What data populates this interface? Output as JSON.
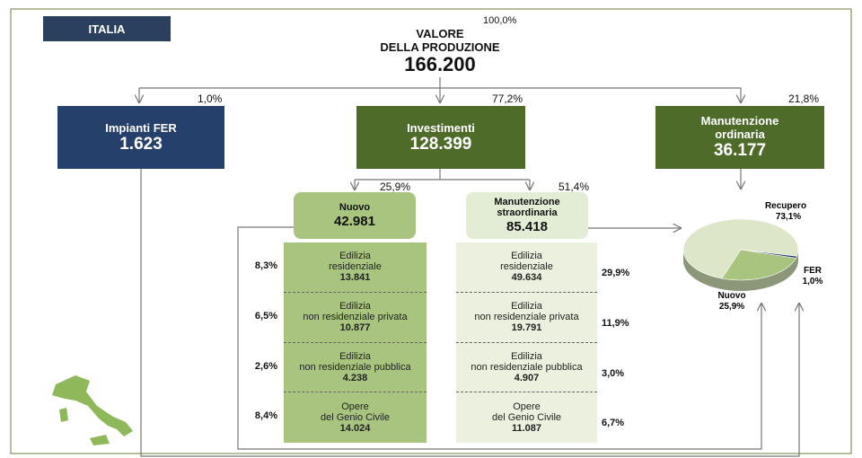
{
  "badge": "ITALIA",
  "root": {
    "title_lines": [
      "VALORE",
      "DELLA PRODUZIONE"
    ],
    "value": "166.200",
    "share": "100,0%"
  },
  "branches": [
    {
      "label_lines": [
        "Impianti FER"
      ],
      "value": "1.623",
      "share": "1,0%"
    },
    {
      "label_lines": [
        "Investimenti"
      ],
      "value": "128.399",
      "share": "77,2%"
    },
    {
      "label_lines": [
        "Manutenzione",
        "ordinaria"
      ],
      "value": "36.177",
      "share": "21,8%"
    }
  ],
  "investments": [
    {
      "label_lines": [
        "Nuovo"
      ],
      "value": "42.981",
      "share": "25,9%",
      "rows": [
        {
          "label_lines": [
            "Edilizia",
            "residenziale"
          ],
          "value": "13.841",
          "share": "8,3%"
        },
        {
          "label_lines": [
            "Edilizia",
            "non residenziale privata"
          ],
          "value": "10.877",
          "share": "6,5%"
        },
        {
          "label_lines": [
            "Edilizia",
            "non residenziale pubblica"
          ],
          "value": "4.238",
          "share": "2,6%"
        },
        {
          "label_lines": [
            "Opere",
            "del Genio Civile"
          ],
          "value": "14.024",
          "share": "8,4%"
        }
      ]
    },
    {
      "label_lines": [
        "Manutenzione",
        "straordinaria"
      ],
      "value": "85.418",
      "share": "51,4%",
      "rows": [
        {
          "label_lines": [
            "Edilizia",
            "residenziale"
          ],
          "value": "49.634",
          "share": "29,9%"
        },
        {
          "label_lines": [
            "Edilizia",
            "non residenziale privata"
          ],
          "value": "19.791",
          "share": "11,9%"
        },
        {
          "label_lines": [
            "Edilizia",
            "non residenziale pubblica"
          ],
          "value": "4.907",
          "share": "3,0%"
        },
        {
          "label_lines": [
            "Opere",
            "del Genio Civile"
          ],
          "value": "11.087",
          "share": "6,7%"
        }
      ]
    }
  ],
  "pie": {
    "type": "pie",
    "categories": [
      "Recupero",
      "Nuovo",
      "FER"
    ],
    "values": [
      73.1,
      25.9,
      1.0
    ],
    "value_labels": [
      "73,1%",
      "25,9%",
      "1,0%"
    ],
    "colors": [
      "#dde6c9",
      "#a9c47f",
      "#2b3f66"
    ]
  }
}
